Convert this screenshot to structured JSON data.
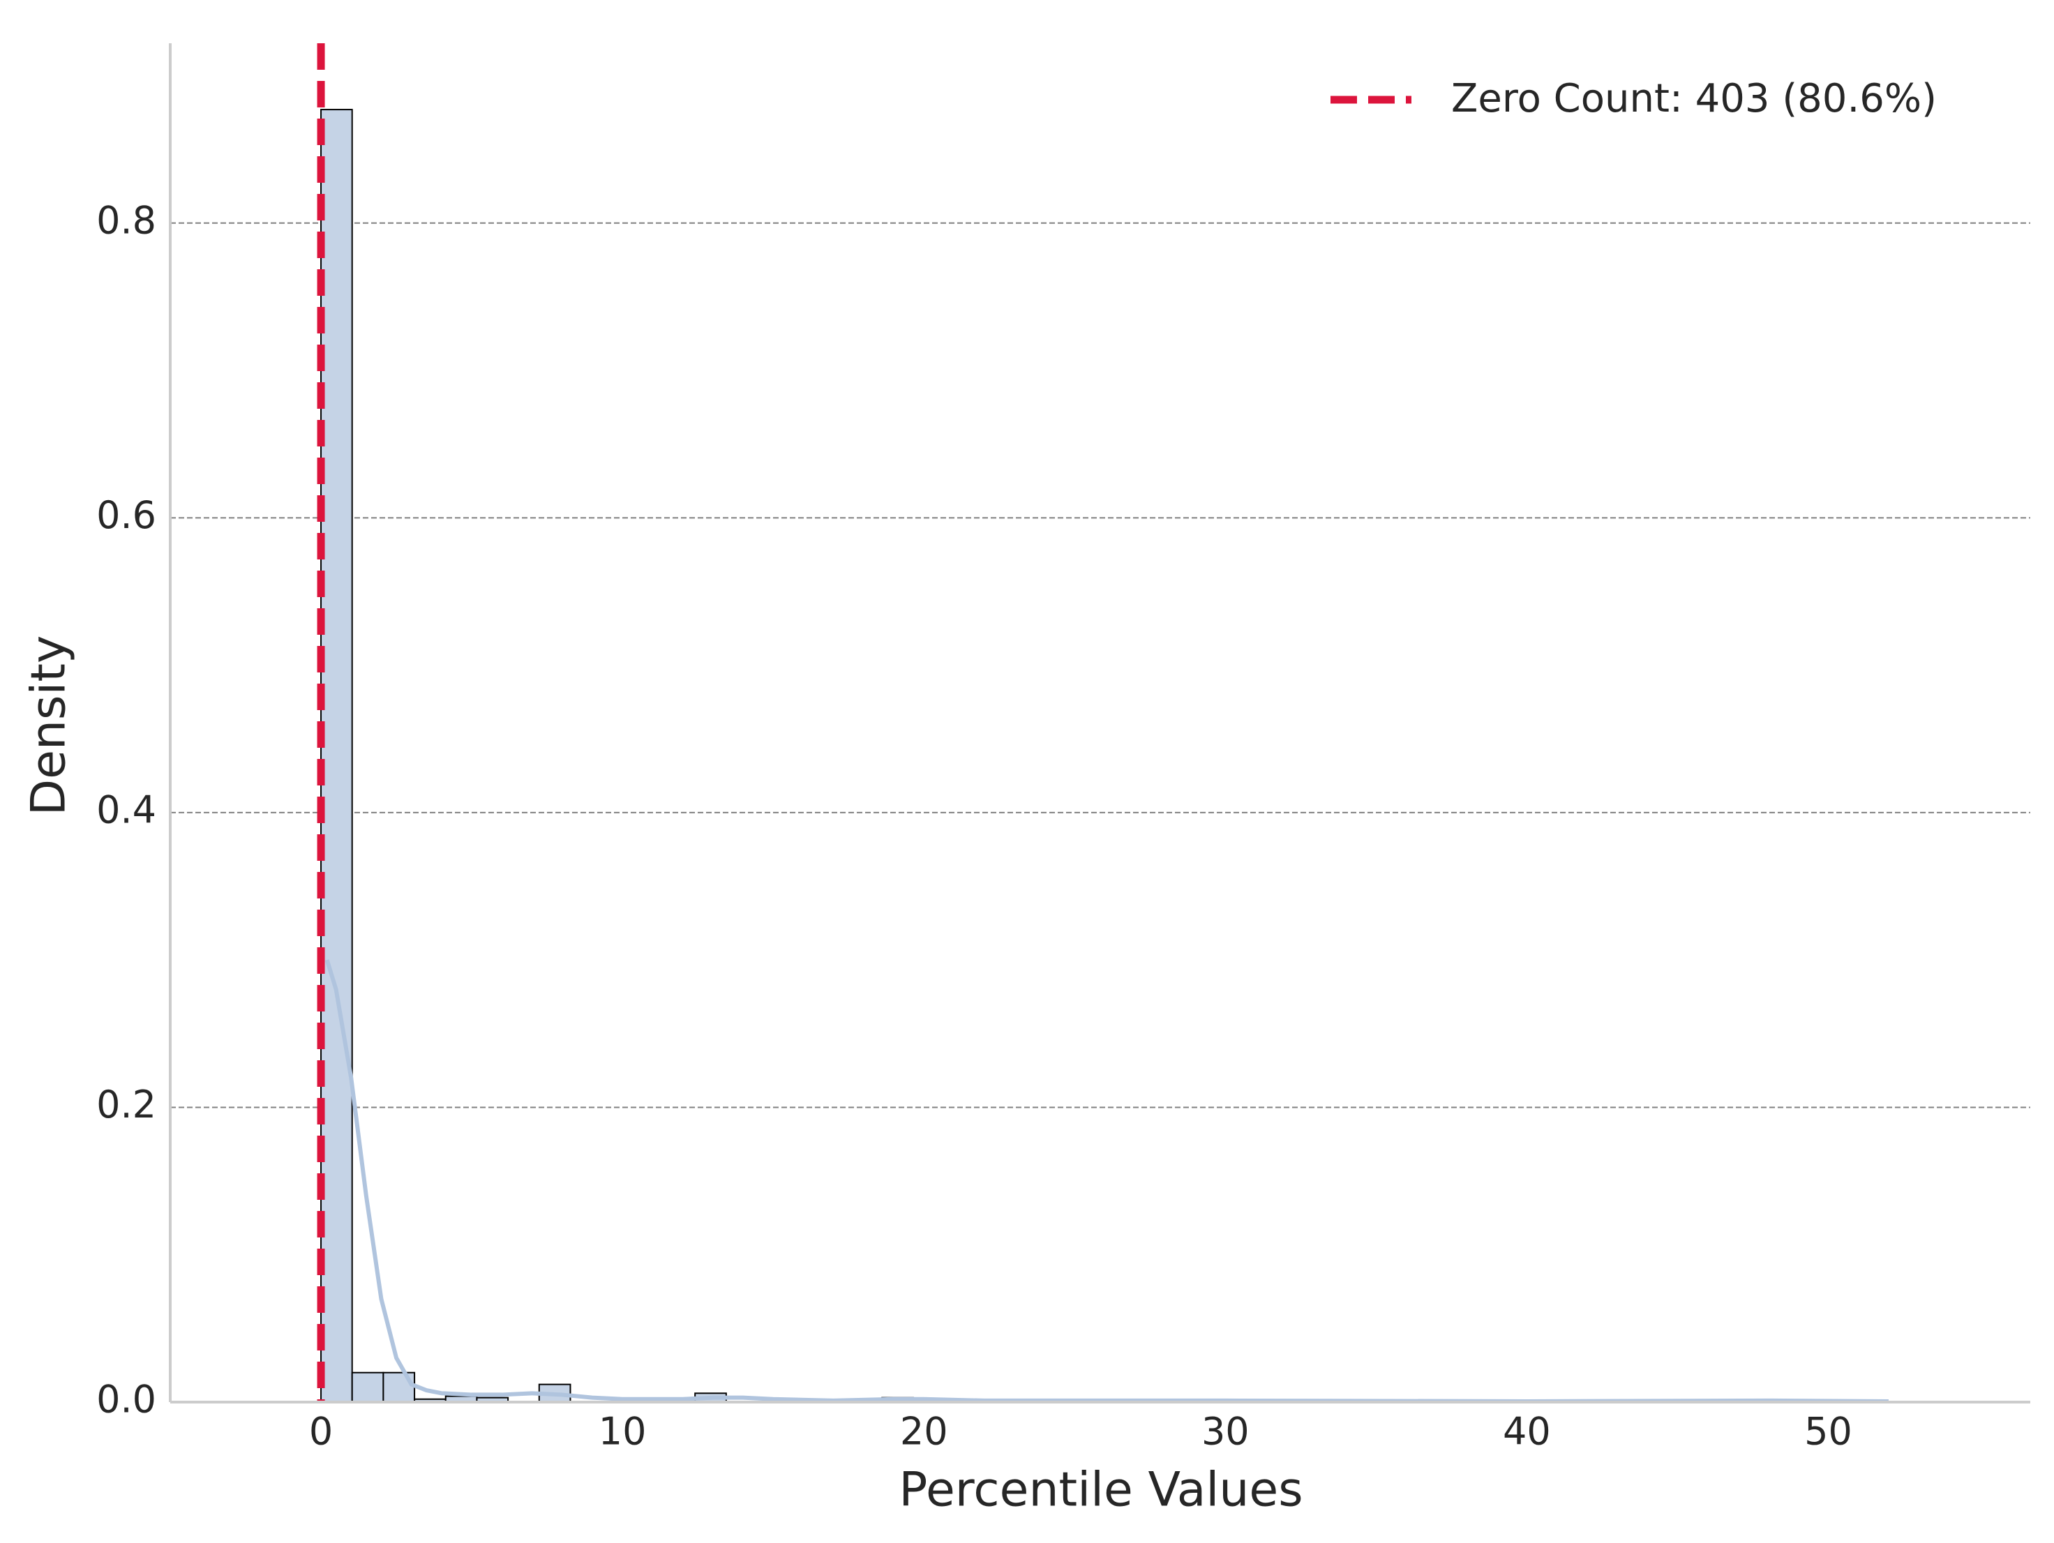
{
  "chart_data": {
    "type": "histogram",
    "x_label": "Percentile Values",
    "y_label": "Density",
    "bins": [
      0,
      1.034,
      2.068,
      3.102,
      4.136,
      5.17,
      6.204,
      7.238,
      8.272,
      9.306,
      10.34,
      11.374,
      12.408,
      13.442,
      14.476,
      15.51,
      16.544,
      17.578,
      18.612,
      19.646,
      20.68,
      21.714,
      22.748,
      23.782,
      24.816,
      25.85,
      26.884,
      27.918,
      28.952,
      29.986,
      31.02,
      32.054,
      33.088,
      34.122,
      35.156,
      36.19,
      37.224,
      38.258,
      39.292,
      40.326,
      41.36,
      42.394,
      43.428,
      44.462,
      45.496,
      46.53,
      47.564,
      48.598,
      49.632,
      50.666,
      51.7
    ],
    "values": [
      0.877,
      0.02,
      0.02,
      0.002,
      0.004,
      0.003,
      0,
      0.012,
      0,
      0,
      0,
      0,
      0.006,
      0,
      0,
      0,
      0,
      0,
      0.003,
      0,
      0,
      0,
      0,
      0.001,
      0,
      0,
      0,
      0,
      0.001,
      0,
      0,
      0,
      0,
      0,
      0,
      0,
      0,
      0,
      0,
      0,
      0,
      0,
      0,
      0,
      0,
      0,
      0.001,
      0,
      0,
      0.001
    ],
    "color": "#c5d3e6",
    "kde": {
      "color": "#b0c4de",
      "x": [
        0.2,
        0.5,
        1,
        1.5,
        2,
        2.5,
        3,
        3.5,
        4,
        5,
        6,
        7,
        8,
        9,
        10,
        12,
        13,
        14,
        15,
        17,
        19,
        20,
        22,
        25,
        30,
        40,
        48,
        52
      ],
      "values": [
        0.3,
        0.28,
        0.22,
        0.14,
        0.07,
        0.03,
        0.012,
        0.008,
        0.006,
        0.005,
        0.005,
        0.006,
        0.005,
        0.003,
        0.002,
        0.002,
        0.003,
        0.003,
        0.002,
        0.001,
        0.002,
        0.002,
        0.001,
        0.001,
        0.001,
        0.0005,
        0.001,
        0.0005
      ]
    },
    "zero_line": {
      "x": 0,
      "label": "Zero Count: 403 (80.6%)",
      "color": "#dc143c"
    },
    "legend": "upper right",
    "xlim": [
      -5,
      56.7
    ],
    "ylim": [
      0,
      0.922
    ],
    "xticks": [
      0,
      10,
      20,
      30,
      40,
      50
    ],
    "yticks": [
      {
        "value": 0,
        "label": "0.0"
      },
      0.2,
      0.4,
      0.6,
      0.8
    ],
    "grid": true
  }
}
